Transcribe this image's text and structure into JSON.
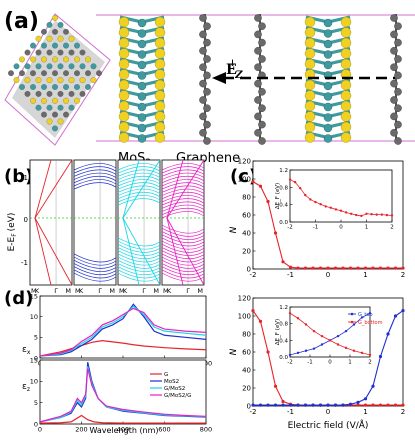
{
  "panels": {
    "a": {
      "label": "(a)",
      "mos2_label": "MoS",
      "mos2_sub": "2",
      "graphene_label": "Graphene",
      "field_label": "E",
      "field_sup": "↓",
      "field_sub": "Z"
    },
    "b": {
      "label": "(b)",
      "ylabel": "E-E",
      "ylabel_sub": "F",
      "ylabel_unit": "(eV)",
      "yticks": [
        "1",
        "0",
        "-1"
      ],
      "xticks": [
        "M",
        "K",
        "Γ",
        "M"
      ]
    },
    "c": {
      "label": "(c)"
    },
    "d": {
      "label": "(d)",
      "ylabel_top": "ε",
      "ylabel_top_sub": "x",
      "ylabel_bot": "ε",
      "ylabel_bot_sub": "z",
      "xlabel": "Wavelength (nm)"
    }
  },
  "colors": {
    "g": "#e8232a",
    "mos2": "#1f2fd0",
    "gmos2": "#19d6e6",
    "gmos2g": "#e91ec4",
    "mo": "#3f9aa0",
    "s": "#f0d020",
    "c": "#6a6a6a"
  },
  "chart_data": [
    {
      "type": "line",
      "panel": "c-top",
      "ylabel": "N_h/e (10^12 cm^-2)",
      "xlim": [
        -2,
        2
      ],
      "ylim": [
        0,
        120
      ],
      "xticks": [
        "-2",
        "-1",
        "0",
        "1",
        "2"
      ],
      "yticks": [
        "0",
        "20",
        "40",
        "60",
        "80",
        "100",
        "120"
      ],
      "series": [
        {
          "color": "#e8232a",
          "x": [
            -2.0,
            -1.8,
            -1.6,
            -1.4,
            -1.2,
            -1.0,
            -0.8,
            -0.6,
            -0.4,
            -0.2,
            0.0,
            0.2,
            0.4,
            0.6,
            0.8,
            1.0,
            1.2,
            1.4,
            1.6,
            1.8,
            2.0
          ],
          "y": [
            97,
            92,
            75,
            40,
            8,
            2,
            1,
            1,
            1,
            1,
            1,
            1,
            1,
            1,
            1,
            1,
            1,
            1,
            1,
            1,
            1
          ]
        }
      ],
      "inset": {
        "ylabel": "ΔE_F (eV)",
        "xlim": [
          -2,
          2
        ],
        "ylim": [
          0.0,
          1.2
        ],
        "xticks": [
          "-2",
          "-1",
          "0",
          "1",
          "2"
        ],
        "yticks": [
          "0.0",
          "0.4",
          "0.8",
          "1.2"
        ],
        "series": [
          {
            "color": "#e8232a",
            "x": [
              -2.0,
              -1.8,
              -1.6,
              -1.4,
              -1.2,
              -1.0,
              -0.8,
              -0.6,
              -0.4,
              -0.2,
              0.0,
              0.2,
              0.4,
              0.6,
              0.8,
              1.0,
              1.2,
              1.4,
              1.6,
              1.8,
              2.0
            ],
            "y": [
              0.98,
              0.92,
              0.78,
              0.62,
              0.52,
              0.46,
              0.41,
              0.36,
              0.33,
              0.29,
              0.26,
              0.22,
              0.19,
              0.16,
              0.14,
              0.19,
              0.18,
              0.17,
              0.17,
              0.16,
              0.15
            ]
          }
        ]
      }
    },
    {
      "type": "line",
      "panel": "c-bottom",
      "ylabel": "N_h/e (10^12 cm^-2)",
      "xlabel": "Electric field (V/Å)",
      "xlim": [
        -2,
        2
      ],
      "ylim": [
        0,
        120
      ],
      "xticks": [
        "-2",
        "-1",
        "0",
        "1",
        "2"
      ],
      "yticks": [
        "0",
        "20",
        "40",
        "60",
        "80",
        "100",
        "120"
      ],
      "series": [
        {
          "color": "#e8232a",
          "x": [
            -2.0,
            -1.8,
            -1.6,
            -1.4,
            -1.2,
            -1.0,
            -0.8,
            -0.6,
            -0.4,
            -0.2,
            0.0,
            0.2,
            0.4,
            0.6,
            0.8,
            1.0,
            1.2,
            1.4,
            1.6,
            1.8,
            2.0
          ],
          "y": [
            106,
            94,
            60,
            22,
            5,
            2,
            1,
            1,
            1,
            1,
            1,
            1,
            1,
            1,
            1,
            1,
            1,
            1,
            1,
            1,
            1
          ]
        },
        {
          "color": "#1f2fd0",
          "x": [
            -2.0,
            -1.8,
            -1.6,
            -1.4,
            -1.2,
            -1.0,
            -0.8,
            -0.6,
            -0.4,
            -0.2,
            0.0,
            0.2,
            0.4,
            0.6,
            0.8,
            1.0,
            1.2,
            1.4,
            1.6,
            1.8,
            2.0
          ],
          "y": [
            1,
            1,
            1,
            1,
            1,
            1,
            1,
            1,
            1,
            1,
            1,
            1,
            1,
            2,
            4,
            8,
            22,
            55,
            80,
            100,
            106
          ]
        }
      ],
      "inset": {
        "ylabel": "ΔE_F (eV)",
        "xlim": [
          -2,
          2
        ],
        "ylim": [
          0.0,
          1.2
        ],
        "xticks": [
          "-2",
          "-1",
          "0",
          "1",
          "2"
        ],
        "yticks": [
          "0.0",
          "0.4",
          "0.8",
          "1.2"
        ],
        "series": [
          {
            "name": "G_top",
            "color": "#1f2fd0",
            "x": [
              -2.0,
              -1.6,
              -1.2,
              -0.8,
              -0.4,
              0.0,
              0.4,
              0.8,
              1.2,
              1.6,
              2.0
            ],
            "y": [
              0.05,
              0.1,
              0.15,
              0.2,
              0.3,
              0.4,
              0.5,
              0.62,
              0.78,
              0.95,
              1.05
            ]
          },
          {
            "name": "G_bottom",
            "color": "#e8232a",
            "x": [
              -2.0,
              -1.6,
              -1.2,
              -0.8,
              -0.4,
              0.0,
              0.4,
              0.8,
              1.2,
              1.6,
              2.0
            ],
            "y": [
              1.05,
              0.93,
              0.78,
              0.62,
              0.5,
              0.4,
              0.3,
              0.22,
              0.15,
              0.1,
              0.05
            ]
          }
        ]
      }
    },
    {
      "type": "line",
      "panel": "d-top",
      "xlim": [
        0,
        800
      ],
      "ylim": [
        0,
        15
      ],
      "xticks": [
        "0",
        "200",
        "400",
        "600",
        "800"
      ],
      "yticks": [
        "0",
        "5",
        "10",
        "15"
      ],
      "series": [
        {
          "color": "#e8232a",
          "x": [
            0,
            100,
            200,
            250,
            300,
            350,
            400,
            450,
            500,
            600,
            700,
            800
          ],
          "y": [
            0.5,
            1.5,
            3.0,
            3.8,
            4.2,
            3.9,
            3.6,
            3.2,
            2.9,
            2.5,
            2.2,
            2.0
          ]
        },
        {
          "color": "#1f2fd0",
          "x": [
            0,
            100,
            150,
            200,
            250,
            300,
            350,
            400,
            450,
            500,
            550,
            600,
            700,
            800
          ],
          "y": [
            0.5,
            0.8,
            1.5,
            3.0,
            4.5,
            7.0,
            8.0,
            9.5,
            13.0,
            10.0,
            6.5,
            5.5,
            5.0,
            4.5
          ]
        },
        {
          "color": "#19d6e6",
          "x": [
            0,
            100,
            150,
            200,
            250,
            300,
            350,
            400,
            450,
            500,
            550,
            600,
            700,
            800
          ],
          "y": [
            0.5,
            1.0,
            1.8,
            3.5,
            5.0,
            7.5,
            8.5,
            10.0,
            12.5,
            10.5,
            7.5,
            6.5,
            6.0,
            5.5
          ]
        },
        {
          "color": "#e91ec4",
          "x": [
            0,
            100,
            150,
            200,
            250,
            300,
            350,
            400,
            450,
            500,
            550,
            600,
            700,
            800
          ],
          "y": [
            0.5,
            1.2,
            2.0,
            4.0,
            5.5,
            8.0,
            9.0,
            10.5,
            12.0,
            11.0,
            8.0,
            7.0,
            6.5,
            6.2
          ]
        }
      ]
    },
    {
      "type": "line",
      "panel": "d-bottom",
      "xlabel": "Wavelength (nm)",
      "xlim": [
        0,
        800
      ],
      "ylim": [
        0,
        15
      ],
      "xticks": [
        "0",
        "200",
        "400",
        "600",
        "800"
      ],
      "yticks": [
        "0",
        "5",
        "10",
        "15"
      ],
      "series": [
        {
          "name": "G",
          "color": "#e8232a",
          "x": [
            0,
            100,
            150,
            200,
            230,
            260,
            300,
            400,
            500,
            600,
            700,
            800
          ],
          "y": [
            0.2,
            0.3,
            0.5,
            2.0,
            1.0,
            0.5,
            0.3,
            0.2,
            0.2,
            0.2,
            0.2,
            0.2
          ]
        },
        {
          "name": "MoS2",
          "color": "#1f2fd0",
          "x": [
            0,
            100,
            150,
            180,
            200,
            220,
            230,
            250,
            280,
            320,
            400,
            500,
            600,
            700,
            800
          ],
          "y": [
            0.5,
            1.5,
            2.5,
            5.0,
            4.0,
            6.0,
            14.5,
            10.0,
            6.0,
            4.0,
            3.0,
            2.5,
            2.0,
            1.8,
            1.6
          ]
        },
        {
          "name": "G/MoS2",
          "color": "#19d6e6",
          "x": [
            0,
            100,
            150,
            180,
            200,
            220,
            230,
            250,
            280,
            320,
            400,
            500,
            600,
            700,
            800
          ],
          "y": [
            0.5,
            1.5,
            2.8,
            5.5,
            4.5,
            6.5,
            13.5,
            9.5,
            6.0,
            4.0,
            3.2,
            2.6,
            2.1,
            1.9,
            1.7
          ]
        },
        {
          "name": "G/MoS2/G",
          "color": "#e91ec4",
          "x": [
            0,
            100,
            150,
            180,
            200,
            220,
            230,
            250,
            280,
            320,
            400,
            500,
            600,
            700,
            800
          ],
          "y": [
            0.5,
            1.8,
            3.0,
            6.0,
            5.0,
            7.0,
            13.0,
            9.0,
            6.0,
            4.2,
            3.4,
            2.8,
            2.3,
            2.0,
            1.8
          ]
        }
      ]
    }
  ]
}
